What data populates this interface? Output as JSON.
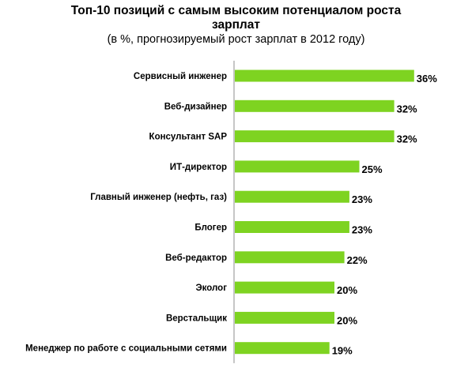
{
  "chart_data": {
    "type": "bar",
    "orientation": "horizontal",
    "title_line1": "Топ-10 позиций с самым высоким потенциалом роста",
    "title_line2": "зарплат",
    "subtitle": "(в %, прогнозируемый рост зарплат в 2012 году)",
    "categories": [
      "Сервисный инженер",
      "Веб-дизайнер",
      "Консультант SAP",
      "ИТ-директор",
      "Главный инженер (нефть, газ)",
      "Блогер",
      "Веб-редактор",
      "Эколог",
      "Верстальщик",
      "Менеджер по работе с социальными сетями"
    ],
    "values": [
      36,
      32,
      32,
      25,
      23,
      23,
      22,
      20,
      20,
      19
    ],
    "value_labels": [
      "36%",
      "32%",
      "32%",
      "25%",
      "23%",
      "23%",
      "22%",
      "20%",
      "20%",
      "19%"
    ],
    "bar_color": "#7ed321",
    "grid": false,
    "legend": "none"
  }
}
